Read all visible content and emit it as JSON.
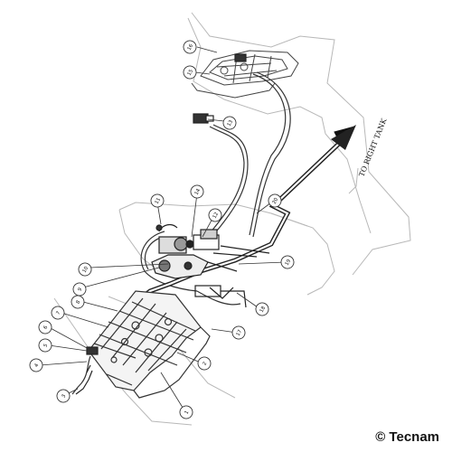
{
  "diagram": {
    "direction_label": "TO RIGHT TANK",
    "copyright": "© Tecnam",
    "callouts": [
      "16",
      "15",
      "13",
      "11",
      "14",
      "12",
      "10",
      "9",
      "8",
      "7",
      "6",
      "5",
      "4",
      "3",
      "1",
      "2",
      "17",
      "18",
      "19",
      "20"
    ]
  }
}
